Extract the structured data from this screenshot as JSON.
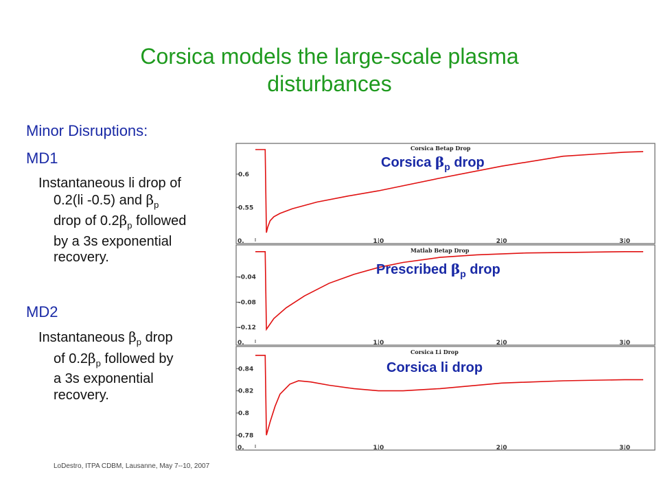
{
  "slide": {
    "title_line1": "Corsica models the large-scale plasma",
    "title_line2": "disturbances",
    "heading": "Minor Disruptions:",
    "md1_label": "MD1",
    "md1_l1": "Instantaneous li drop of",
    "md1_l2a": "0.2(li -0.5) and ",
    "md1_l3a": "drop of 0.2",
    "md1_l3b": " followed",
    "md1_l4": "by a 3s exponential",
    "md1_l5": "recovery.",
    "md2_label": "MD2",
    "md2_l1a": "Instantaneous ",
    "md2_l1b": " drop",
    "md2_l2a": "of  0.2",
    "md2_l2b": " followed by",
    "md2_l3": "a 3s exponential",
    "md2_l4": "recovery.",
    "beta_symbol": "β",
    "p_sub": "p",
    "footer": "LoDestro, ITPA CDBM, Lausanne, May 7--10, 2007"
  },
  "chart_data": [
    {
      "type": "line",
      "title": "Corsica Betap Drop",
      "overlay_a": "Corsica ",
      "overlay_b": " drop",
      "xlim": [
        0,
        3.15
      ],
      "ylim": [
        0.508,
        0.638
      ],
      "xticks": [
        {
          "v": 0,
          "label": "0."
        },
        {
          "v": 1,
          "label": "1.0"
        },
        {
          "v": 2,
          "label": "2.0"
        },
        {
          "v": 3,
          "label": "3.0"
        }
      ],
      "yticks": [
        {
          "v": 0.6,
          "label": "0.6"
        },
        {
          "v": 0.55,
          "label": "0.55"
        }
      ],
      "series": [
        {
          "color": "#e01010",
          "x": [
            0,
            0.08,
            0.09,
            0.1,
            0.12,
            0.15,
            0.2,
            0.3,
            0.5,
            0.75,
            1.0,
            1.5,
            2.0,
            2.5,
            3.0,
            3.15
          ],
          "y": [
            0.637,
            0.637,
            0.512,
            0.52,
            0.53,
            0.536,
            0.541,
            0.548,
            0.558,
            0.567,
            0.575,
            0.594,
            0.612,
            0.627,
            0.633,
            0.634
          ]
        }
      ]
    },
    {
      "type": "line",
      "title": "Matlab Betap Drop",
      "overlay_a": "Prescribed  ",
      "overlay_b": " drop",
      "xlim": [
        0,
        3.15
      ],
      "ylim": [
        -0.135,
        0.002
      ],
      "xticks": [
        {
          "v": 0,
          "label": "0."
        },
        {
          "v": 1,
          "label": "1.0"
        },
        {
          "v": 2,
          "label": "2.0"
        },
        {
          "v": 3,
          "label": "3.0"
        }
      ],
      "yticks": [
        {
          "v": -0.04,
          "label": "-0.04"
        },
        {
          "v": -0.08,
          "label": "-0.08"
        },
        {
          "v": -0.12,
          "label": "-0.12"
        }
      ],
      "series": [
        {
          "color": "#e01010",
          "x": [
            0,
            0.08,
            0.09,
            0.15,
            0.25,
            0.4,
            0.6,
            0.8,
            1.0,
            1.2,
            1.5,
            1.8,
            2.2,
            2.6,
            3.0,
            3.15
          ],
          "y": [
            0,
            0,
            -0.123,
            -0.106,
            -0.089,
            -0.07,
            -0.05,
            -0.036,
            -0.025,
            -0.017,
            -0.009,
            -0.005,
            -0.002,
            -0.001,
            0,
            0
          ]
        }
      ]
    },
    {
      "type": "line",
      "title": "Corsica Li Drop",
      "overlay_a": "Corsica li drop",
      "overlay_b": "",
      "xlim": [
        0,
        3.15
      ],
      "ylim": [
        0.774,
        0.855
      ],
      "xticks": [
        {
          "v": 0,
          "label": "0."
        },
        {
          "v": 1,
          "label": "1.0"
        },
        {
          "v": 2,
          "label": "2.0"
        },
        {
          "v": 3,
          "label": "3.0"
        }
      ],
      "yticks": [
        {
          "v": 0.84,
          "label": "0.84"
        },
        {
          "v": 0.82,
          "label": "0.82"
        },
        {
          "v": 0.8,
          "label": "0.8"
        },
        {
          "v": 0.78,
          "label": "0.78"
        }
      ],
      "series": [
        {
          "color": "#e01010",
          "x": [
            0,
            0.08,
            0.09,
            0.12,
            0.16,
            0.2,
            0.28,
            0.35,
            0.45,
            0.6,
            0.8,
            1.0,
            1.2,
            1.5,
            2.0,
            2.5,
            3.0,
            3.15
          ],
          "y": [
            0.852,
            0.852,
            0.78,
            0.792,
            0.806,
            0.817,
            0.826,
            0.829,
            0.828,
            0.825,
            0.822,
            0.82,
            0.82,
            0.822,
            0.827,
            0.829,
            0.83,
            0.83
          ]
        }
      ]
    }
  ]
}
